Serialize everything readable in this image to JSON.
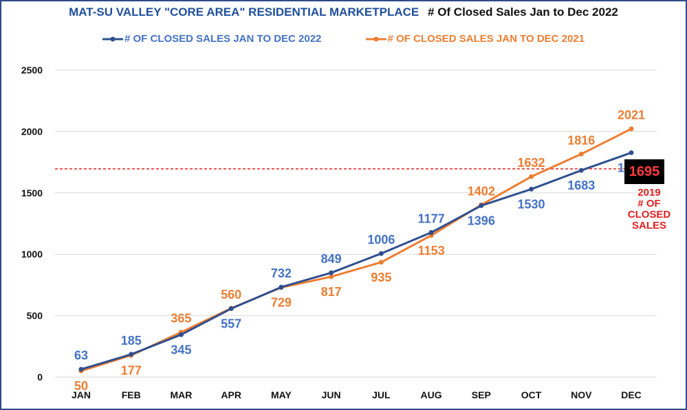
{
  "chart_data": {
    "type": "line",
    "title": "MAT-SU VALLEY \"CORE AREA\" RESIDENTIAL MARKETPLACE",
    "subtitle": "# Of Closed Sales Jan to Dec 2022",
    "xlabel": "",
    "ylabel": "",
    "categories": [
      "JAN",
      "FEB",
      "MAR",
      "APR",
      "MAY",
      "JUN",
      "JUL",
      "AUG",
      "SEP",
      "OCT",
      "NOV",
      "DEC"
    ],
    "ylim": [
      0,
      2500
    ],
    "yticks": [
      0,
      500,
      1000,
      1500,
      2000,
      2500
    ],
    "grid": "horizontal",
    "legend_position": "top",
    "series": [
      {
        "name": "# OF CLOSED SALES JAN TO DEC 2022",
        "color": "#2f4f8f",
        "label_color": "#4472c4",
        "values": [
          63,
          185,
          345,
          557,
          732,
          849,
          1006,
          1177,
          1396,
          1530,
          1683,
          1827
        ]
      },
      {
        "name": "# OF CLOSED SALES JAN TO DEC 2021",
        "color": "#ed7d31",
        "label_color": "#ed7d31",
        "values": [
          50,
          177,
          365,
          560,
          729,
          817,
          935,
          1153,
          1402,
          1632,
          1816,
          2021
        ]
      }
    ],
    "reference_line": {
      "value": 1695,
      "label": "1695",
      "caption_lines": [
        "2019",
        "# OF",
        "CLOSED",
        "SALES"
      ],
      "line_color": "#e02020",
      "box_color": "#000000",
      "text_color": "#ff3b3b"
    }
  }
}
